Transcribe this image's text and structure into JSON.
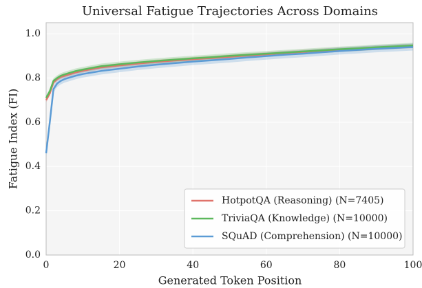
{
  "chart_data": {
    "type": "line",
    "title": "Universal Fatigue Trajectories Across Domains",
    "xlabel": "Generated Token Position",
    "ylabel": "Fatigue Index (FI)",
    "x": [
      0,
      1,
      2,
      3,
      4,
      5,
      6,
      8,
      10,
      15,
      20,
      25,
      30,
      35,
      40,
      45,
      50,
      55,
      60,
      65,
      70,
      75,
      80,
      85,
      90,
      95,
      100
    ],
    "series": [
      {
        "name": "HotpotQA (Reasoning) (N=7405)",
        "color": "#e0736b",
        "ci": 0.01,
        "values": [
          0.7,
          0.73,
          0.78,
          0.795,
          0.805,
          0.81,
          0.815,
          0.825,
          0.833,
          0.848,
          0.857,
          0.865,
          0.873,
          0.879,
          0.885,
          0.89,
          0.896,
          0.902,
          0.907,
          0.913,
          0.918,
          0.923,
          0.928,
          0.932,
          0.937,
          0.941,
          0.945
        ]
      },
      {
        "name": "TriviaQA (Knowledge) (N=10000)",
        "color": "#5cb85c",
        "ci": 0.012,
        "values": [
          0.71,
          0.74,
          0.787,
          0.8,
          0.81,
          0.816,
          0.821,
          0.831,
          0.838,
          0.853,
          0.862,
          0.87,
          0.877,
          0.883,
          0.889,
          0.894,
          0.9,
          0.905,
          0.91,
          0.915,
          0.92,
          0.925,
          0.93,
          0.934,
          0.939,
          0.943,
          0.947
        ]
      },
      {
        "name": "SQuAD (Comprehension) (N=10000)",
        "color": "#5b9bd5",
        "ci": 0.016,
        "values": [
          0.46,
          0.6,
          0.75,
          0.775,
          0.787,
          0.795,
          0.8,
          0.81,
          0.818,
          0.832,
          0.842,
          0.852,
          0.86,
          0.867,
          0.874,
          0.88,
          0.886,
          0.893,
          0.899,
          0.905,
          0.91,
          0.916,
          0.922,
          0.927,
          0.932,
          0.936,
          0.94
        ]
      }
    ],
    "xlim": [
      0,
      100
    ],
    "xticks": [
      0,
      20,
      40,
      60,
      80,
      100
    ],
    "ylim": [
      0,
      1.05
    ],
    "yticks": [
      {
        "value": 0,
        "label": "0.0"
      },
      0.2,
      0.4,
      0.6,
      0.8,
      {
        "value": 1,
        "label": "1.0"
      }
    ],
    "grid": true,
    "legend": "lower right"
  }
}
